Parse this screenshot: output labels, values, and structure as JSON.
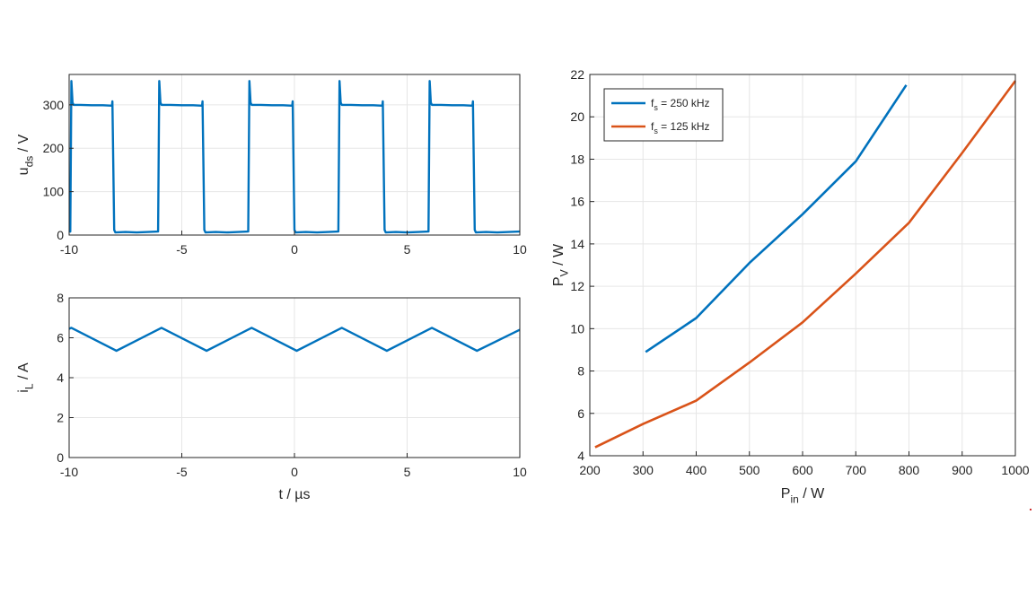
{
  "chart_data": [
    {
      "type": "line",
      "panel": "top-left",
      "ylabel": "u_ds / V",
      "ylabel_main": "u",
      "ylabel_sub": "ds",
      "ylabel_unit": " / V",
      "xlabel": "",
      "xlim": [
        -10,
        10
      ],
      "ylim": [
        0,
        370
      ],
      "xticks": [
        -10,
        -5,
        0,
        5,
        10
      ],
      "yticks": [
        0,
        100,
        200,
        300
      ],
      "grid": true,
      "color": "#0072BD",
      "series": [
        {
          "x": [
            -10,
            -9.95,
            -9.9,
            -9.85,
            -9.8,
            -9.5,
            -9,
            -8.5,
            -8.1,
            -8.08,
            -8.0,
            -7.95,
            -7.5,
            -7,
            -6.5,
            -6.05,
            -6.0,
            -5.95,
            -5.9,
            -5.85,
            -5.5,
            -5,
            -4.5,
            -4.1,
            -4.08,
            -4.0,
            -3.95,
            -3.5,
            -3,
            -2.5,
            -2.05,
            -2.0,
            -1.95,
            -1.9,
            -1.85,
            -1.5,
            -1,
            -0.5,
            -0.1,
            -0.08,
            0.0,
            0.05,
            0.5,
            1,
            1.5,
            1.95,
            2.0,
            2.05,
            2.1,
            2.15,
            2.5,
            3,
            3.5,
            3.9,
            3.92,
            4.0,
            4.05,
            4.5,
            5,
            5.5,
            5.95,
            6.0,
            6.05,
            6.1,
            6.15,
            6.5,
            7,
            7.5,
            7.9,
            7.92,
            8.0,
            8.05,
            8.5,
            9,
            9.5,
            10
          ],
          "y": [
            10,
            8,
            355,
            305,
            300,
            300,
            299,
            299,
            298,
            308,
            12,
            6,
            7,
            6,
            7,
            8,
            355,
            305,
            300,
            300,
            300,
            299,
            299,
            298,
            308,
            12,
            6,
            7,
            6,
            7,
            8,
            355,
            305,
            300,
            300,
            300,
            299,
            299,
            298,
            308,
            12,
            6,
            7,
            6,
            7,
            8,
            355,
            305,
            300,
            300,
            300,
            299,
            299,
            298,
            308,
            12,
            6,
            7,
            6,
            7,
            8,
            355,
            305,
            300,
            300,
            300,
            299,
            299,
            298,
            308,
            12,
            6,
            7,
            6,
            7,
            8
          ]
        }
      ]
    },
    {
      "type": "line",
      "panel": "bottom-left",
      "ylabel": "i_L / A",
      "ylabel_main": "i",
      "ylabel_sub": "L",
      "ylabel_unit": " / A",
      "xlabel": "t / µs",
      "xlim": [
        -10,
        10
      ],
      "ylim": [
        0,
        8
      ],
      "xticks": [
        -10,
        -5,
        0,
        5,
        10
      ],
      "yticks": [
        0,
        2,
        4,
        6,
        8
      ],
      "grid": true,
      "color": "#0072BD",
      "series": [
        {
          "x": [
            -10,
            -9.9,
            -7.9,
            -5.9,
            -3.9,
            -1.9,
            0.1,
            2.1,
            4.1,
            6.1,
            8.1,
            10
          ],
          "y": [
            6.45,
            6.5,
            5.35,
            6.5,
            5.35,
            6.5,
            5.35,
            6.5,
            5.35,
            6.5,
            5.35,
            6.4
          ]
        }
      ]
    },
    {
      "type": "line",
      "panel": "right",
      "xlabel": "P_in / W",
      "xlabel_main": "P",
      "xlabel_sub": "in",
      "xlabel_unit": " / W",
      "ylabel": "P_V / W",
      "ylabel_main": "P",
      "ylabel_sub": "V",
      "ylabel_unit": " / W",
      "xlim": [
        200,
        1000
      ],
      "ylim": [
        4,
        22
      ],
      "xticks": [
        200,
        300,
        400,
        500,
        600,
        700,
        800,
        900,
        1000
      ],
      "yticks": [
        4,
        6,
        8,
        10,
        12,
        14,
        16,
        18,
        20,
        22
      ],
      "grid": true,
      "legend": "top-left",
      "series": [
        {
          "name": "f_s = 250 kHz",
          "name_main": "f",
          "name_sub": "s",
          "name_rest": " = 250 kHz",
          "color": "#0072BD",
          "x": [
            305,
            400,
            500,
            600,
            700,
            795
          ],
          "y": [
            8.9,
            10.5,
            13.1,
            15.4,
            17.9,
            21.5
          ]
        },
        {
          "name": "f_s = 125 kHz",
          "name_main": "f",
          "name_sub": "s",
          "name_rest": " = 125 kHz",
          "color": "#D95319",
          "x": [
            210,
            300,
            400,
            500,
            600,
            700,
            800,
            900,
            1000
          ],
          "y": [
            4.4,
            5.5,
            6.6,
            8.4,
            10.3,
            12.6,
            15.0,
            18.3,
            21.7
          ]
        }
      ]
    }
  ]
}
